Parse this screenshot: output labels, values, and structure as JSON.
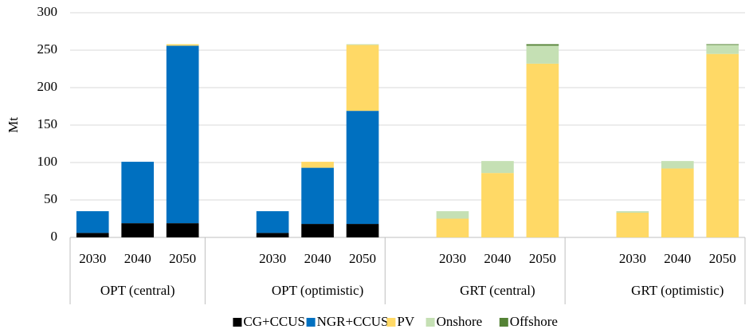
{
  "chart_data": {
    "type": "bar",
    "stacked": true,
    "y_label": "Mt",
    "groups": [
      {
        "name": "OPT (central)",
        "categories": [
          "2030",
          "2040",
          "2050"
        ]
      },
      {
        "name": "OPT (optimistic)",
        "categories": [
          "2030",
          "2040",
          "2050"
        ]
      },
      {
        "name": "GRT (central)",
        "categories": [
          "2030",
          "2040",
          "2050"
        ]
      },
      {
        "name": "GRT (optimistic)",
        "categories": [
          "2030",
          "2040",
          "2050"
        ]
      }
    ],
    "series": [
      {
        "name": "CG+CCUS",
        "color": "#000000",
        "values": [
          6,
          19,
          19,
          6,
          18,
          18,
          0,
          0,
          0,
          0,
          0,
          0
        ]
      },
      {
        "name": "NGR+CCUS",
        "color": "#0070c0",
        "values": [
          29,
          82,
          237,
          29,
          75,
          151,
          0,
          0,
          0,
          0,
          0,
          0
        ]
      },
      {
        "name": "PV",
        "color": "#ffd966",
        "values": [
          0,
          0,
          2,
          0,
          8,
          88,
          25,
          86,
          232,
          33,
          92,
          245
        ]
      },
      {
        "name": "Onshore",
        "color": "#c5e0b4",
        "values": [
          0,
          0,
          0,
          0,
          0,
          1,
          10,
          16,
          24,
          2,
          10,
          12
        ]
      },
      {
        "name": "Offshore",
        "color": "#548235",
        "values": [
          0,
          0,
          0,
          0,
          0,
          0,
          0,
          0,
          2,
          0,
          0,
          1
        ]
      }
    ],
    "ylim": [
      0,
      300
    ],
    "yticks": [
      0,
      50,
      100,
      150,
      200,
      250,
      300
    ],
    "grid": true,
    "legend": "bottom"
  }
}
